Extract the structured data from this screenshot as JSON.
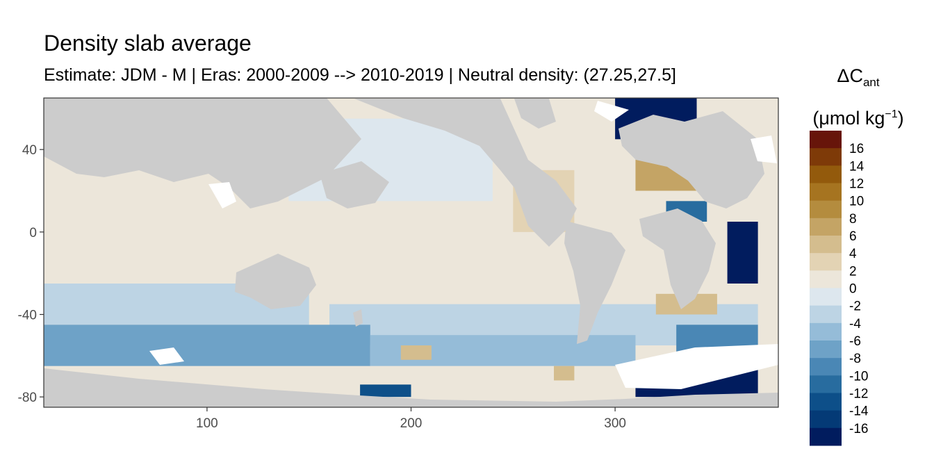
{
  "title": "Density slab average",
  "subtitle": "Estimate: JDM - M | Eras: 2000-2009 --> 2010-2019 | Neutral density: (27.25,27.5]",
  "legend": {
    "title_base": "ΔC",
    "title_sub": "ant",
    "unit_open": "(μmol kg",
    "unit_sup": "−1",
    "unit_close": ")",
    "labels": [
      "16",
      "14",
      "12",
      "10",
      "8",
      "6",
      "4",
      "2",
      "0",
      "-2",
      "-4",
      "-6",
      "-8",
      "-10",
      "-12",
      "-14",
      "-16"
    ],
    "colors": [
      "#67150a",
      "#7e3a08",
      "#935a0c",
      "#a67420",
      "#b48c3e",
      "#c4a465",
      "#d4bd8e",
      "#e3d3b4",
      "#ece6da",
      "#dde7ee",
      "#bdd4e4",
      "#95bcd8",
      "#6ea2c7",
      "#4a87b5",
      "#286c9f",
      "#0d4f89",
      "#043a76",
      "#011c5e"
    ]
  },
  "chart_data": {
    "type": "heatmap",
    "title": "Density slab average",
    "xlabel": "",
    "ylabel": "",
    "x_ticks": [
      "100",
      "200",
      "300"
    ],
    "y_ticks": [
      "40",
      "0",
      "-40",
      "-80"
    ],
    "xlim": [
      20,
      380
    ],
    "ylim": [
      -85,
      65
    ],
    "value_range": [
      -16,
      16
    ],
    "colorbar_unit": "μmol kg−1",
    "grid": false,
    "legend_position": "right",
    "land_color": "#cccccc",
    "regions": [
      {
        "x": [
          20,
          380
        ],
        "y": [
          -85,
          65
        ],
        "value": 0.5
      },
      {
        "x": [
          20,
          150
        ],
        "y": [
          -45,
          -25
        ],
        "value": -3
      },
      {
        "x": [
          160,
          370
        ],
        "y": [
          -55,
          -35
        ],
        "value": -3
      },
      {
        "x": [
          20,
          180
        ],
        "y": [
          -65,
          -45
        ],
        "value": -7
      },
      {
        "x": [
          180,
          310
        ],
        "y": [
          -65,
          -50
        ],
        "value": -5
      },
      {
        "x": [
          330,
          370
        ],
        "y": [
          -60,
          -45
        ],
        "value": -8
      },
      {
        "x": [
          140,
          240
        ],
        "y": [
          15,
          55
        ],
        "value": -1.5
      },
      {
        "x": [
          250,
          280
        ],
        "y": [
          0,
          30
        ],
        "value": 3
      },
      {
        "x": [
          310,
          345
        ],
        "y": [
          20,
          45
        ],
        "value": 8
      },
      {
        "x": [
          325,
          345
        ],
        "y": [
          5,
          15
        ],
        "value": -10
      },
      {
        "x": [
          355,
          370
        ],
        "y": [
          -25,
          5
        ],
        "value": -17
      },
      {
        "x": [
          300,
          340
        ],
        "y": [
          45,
          65
        ],
        "value": -16
      },
      {
        "x": [
          320,
          350
        ],
        "y": [
          -40,
          -30
        ],
        "value": 6
      },
      {
        "x": [
          195,
          210
        ],
        "y": [
          -62,
          -55
        ],
        "value": 6
      },
      {
        "x": [
          270,
          280
        ],
        "y": [
          -72,
          -65
        ],
        "value": 6
      },
      {
        "x": [
          310,
          370
        ],
        "y": [
          -80,
          -65
        ],
        "value": -16
      },
      {
        "x": [
          175,
          200
        ],
        "y": [
          -80,
          -74
        ],
        "value": -12
      }
    ]
  }
}
